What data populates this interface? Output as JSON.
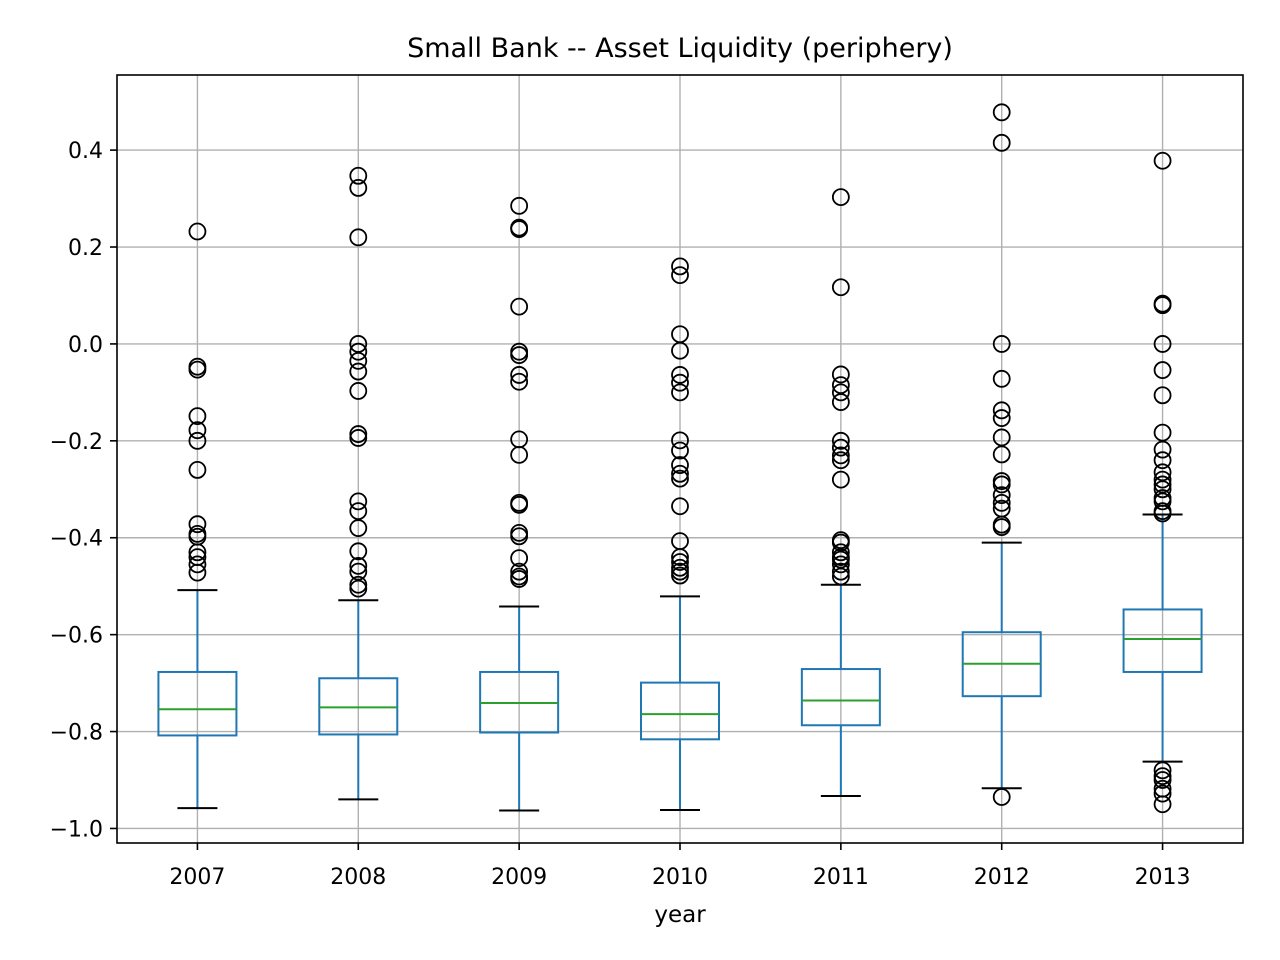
{
  "chart_data": {
    "type": "box",
    "title": "Small Bank -- Asset Liquidity (periphery)",
    "xlabel": "year",
    "ylabel": "",
    "ylim": [
      -1.03,
      0.555
    ],
    "yticks": [
      0.4,
      0.2,
      0.0,
      -0.2,
      -0.4,
      -0.6,
      -0.8,
      -1.0
    ],
    "ytick_labels": [
      "0.4",
      "0.2",
      "0.0",
      "−0.2",
      "−0.4",
      "−0.6",
      "−0.8",
      "−1.0"
    ],
    "grid": true,
    "colors": {
      "box": "#1f77b4",
      "median": "#2ca02c",
      "whisker_cap": "#000000",
      "outlier": "#000000",
      "grid": "#b0b0b0"
    },
    "categories": [
      "2007",
      "2008",
      "2009",
      "2010",
      "2011",
      "2012",
      "2013"
    ],
    "boxes": [
      {
        "category": "2007",
        "whisker_low": -0.958,
        "q1": -0.808,
        "median": -0.754,
        "q3": -0.677,
        "whisker_high": -0.508,
        "outliers": [
          0.232,
          -0.047,
          -0.053,
          -0.149,
          -0.178,
          -0.2,
          -0.26,
          -0.372,
          -0.392,
          -0.398,
          -0.43,
          -0.44,
          -0.455,
          -0.472
        ]
      },
      {
        "category": "2008",
        "whisker_low": -0.94,
        "q1": -0.806,
        "median": -0.75,
        "q3": -0.69,
        "whisker_high": -0.529,
        "outliers": [
          0.347,
          0.322,
          0.22,
          0.0,
          -0.016,
          -0.035,
          -0.057,
          -0.097,
          -0.186,
          -0.194,
          -0.325,
          -0.345,
          -0.38,
          -0.428,
          -0.458,
          -0.47,
          -0.497,
          -0.505
        ]
      },
      {
        "category": "2009",
        "whisker_low": -0.963,
        "q1": -0.802,
        "median": -0.741,
        "q3": -0.677,
        "whisker_high": -0.542,
        "outliers": [
          0.285,
          0.24,
          0.237,
          0.077,
          -0.016,
          -0.023,
          -0.064,
          -0.078,
          -0.197,
          -0.229,
          -0.328,
          -0.332,
          -0.39,
          -0.397,
          -0.442,
          -0.47,
          -0.48,
          -0.485
        ]
      },
      {
        "category": "2010",
        "whisker_low": -0.962,
        "q1": -0.816,
        "median": -0.764,
        "q3": -0.699,
        "whisker_high": -0.521,
        "outliers": [
          0.16,
          0.142,
          0.02,
          -0.014,
          -0.064,
          -0.08,
          -0.1,
          -0.199,
          -0.22,
          -0.25,
          -0.268,
          -0.278,
          -0.335,
          -0.407,
          -0.44,
          -0.45,
          -0.462,
          -0.47,
          -0.478
        ]
      },
      {
        "category": "2011",
        "whisker_low": -0.933,
        "q1": -0.787,
        "median": -0.736,
        "q3": -0.671,
        "whisker_high": -0.497,
        "outliers": [
          0.303,
          0.117,
          -0.063,
          -0.085,
          -0.1,
          -0.12,
          -0.2,
          -0.214,
          -0.23,
          -0.24,
          -0.28,
          -0.405,
          -0.41,
          -0.43,
          -0.44,
          -0.445,
          -0.455,
          -0.47,
          -0.48
        ]
      },
      {
        "category": "2012",
        "whisker_low": -0.917,
        "q1": -0.727,
        "median": -0.66,
        "q3": -0.595,
        "whisker_high": -0.41,
        "outliers": [
          0.478,
          0.415,
          0.0,
          -0.072,
          -0.137,
          -0.153,
          -0.193,
          -0.228,
          -0.283,
          -0.29,
          -0.312,
          -0.328,
          -0.34,
          -0.373,
          -0.378,
          -0.935
        ]
      },
      {
        "category": "2013",
        "whisker_low": -0.862,
        "q1": -0.677,
        "median": -0.609,
        "q3": -0.548,
        "whisker_high": -0.352,
        "outliers": [
          0.378,
          0.083,
          0.08,
          0.0,
          -0.054,
          -0.106,
          -0.183,
          -0.218,
          -0.24,
          -0.265,
          -0.28,
          -0.29,
          -0.3,
          -0.318,
          -0.325,
          -0.345,
          -0.35,
          -0.88,
          -0.892,
          -0.9,
          -0.918,
          -0.928,
          -0.95
        ]
      }
    ]
  }
}
